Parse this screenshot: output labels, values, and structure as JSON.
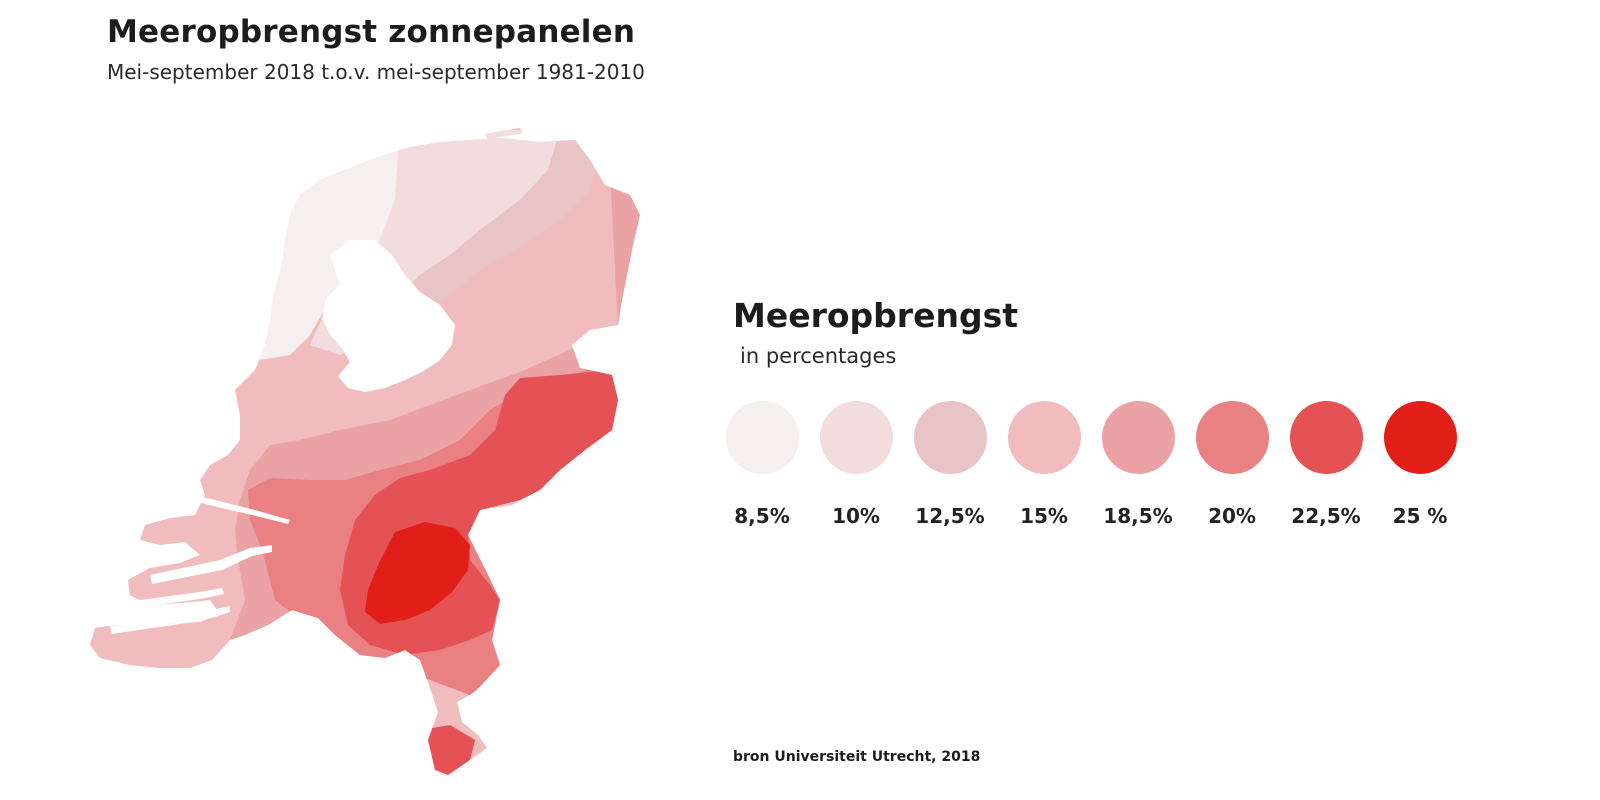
{
  "header": {
    "title": "Meeropbrengst zonnepanelen",
    "subtitle": "Mei-september 2018 t.o.v. mei-september 1981-2010"
  },
  "legend": {
    "title": "Meeropbrengst",
    "subtitle": "in percentages",
    "items": [
      {
        "label": "8,5%",
        "value": 8.5,
        "color": "#f5eff0"
      },
      {
        "label": "10%",
        "value": 10,
        "color": "#f3dcde"
      },
      {
        "label": "12,5%",
        "value": 12.5,
        "color": "#e8c4c7"
      },
      {
        "label": "15%",
        "value": 15,
        "color": "#f0bcbe"
      },
      {
        "label": "18,5%",
        "value": 18.5,
        "color": "#eba2a5"
      },
      {
        "label": "20%",
        "value": 20,
        "color": "#e98082"
      },
      {
        "label": "22,5%",
        "value": 22.5,
        "color": "#e45256"
      },
      {
        "label": "25 %",
        "value": 25,
        "color": "#e11e18"
      }
    ]
  },
  "source": "bron Universiteit Utrecht, 2018",
  "colors": {
    "background": "#ffffff",
    "text": "#1c1c1c",
    "water": "#ffffff"
  }
}
